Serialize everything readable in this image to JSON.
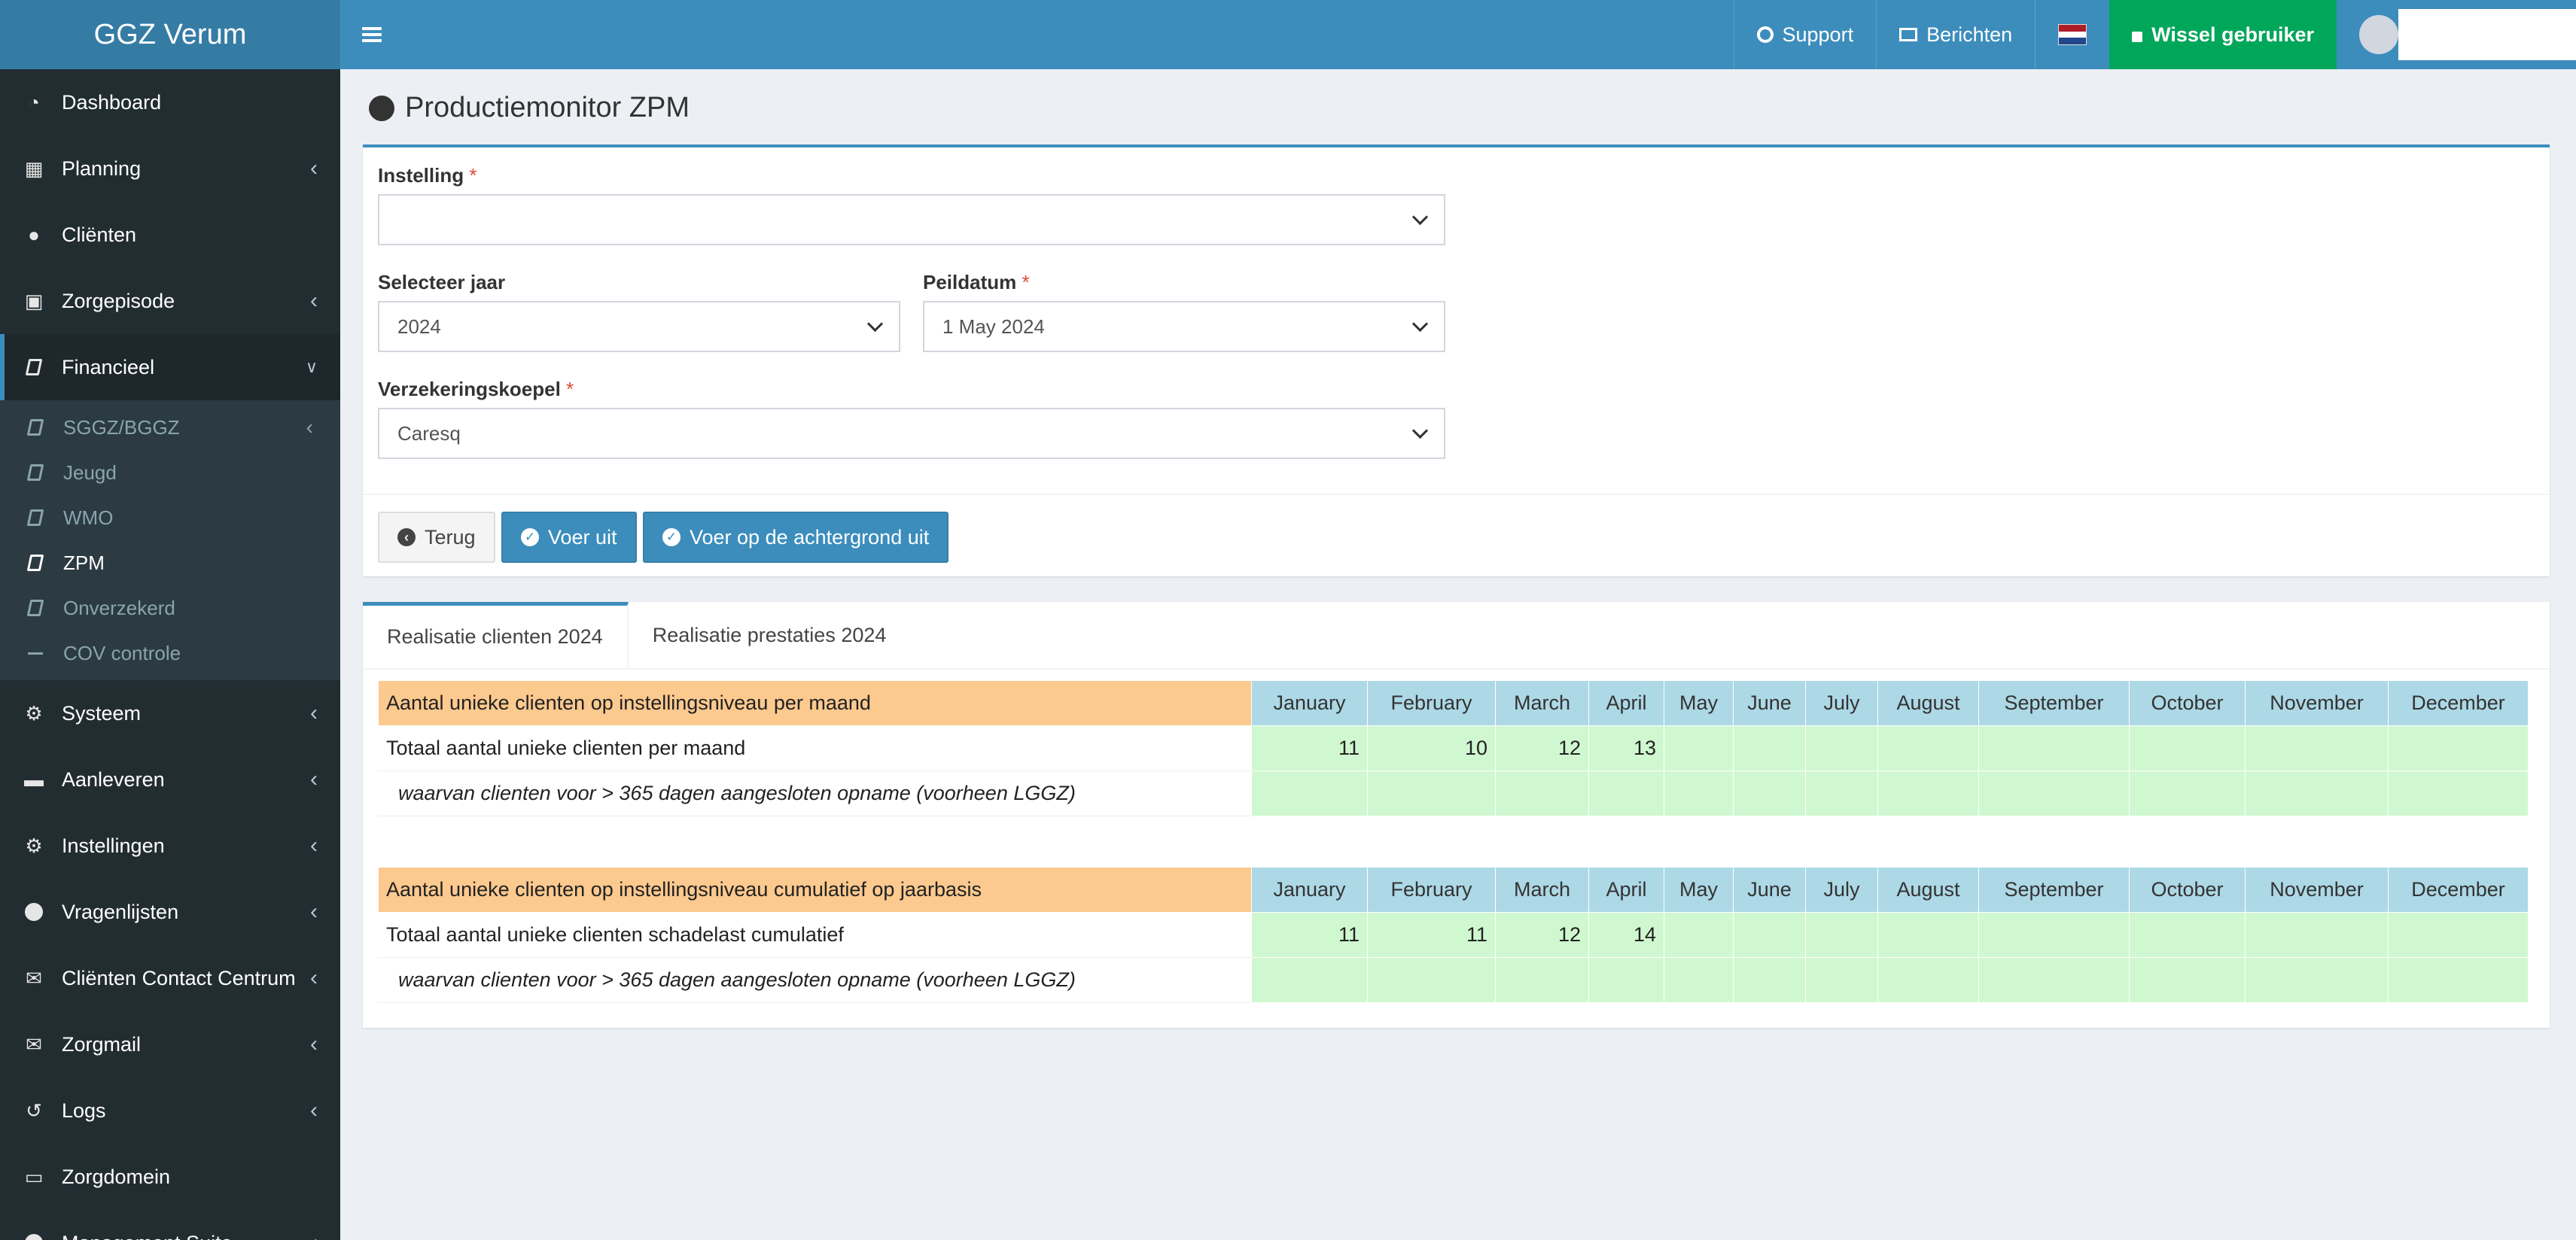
{
  "app": {
    "title": "GGZ Verum"
  },
  "topbar": {
    "support_label": "Support",
    "messages_label": "Berichten",
    "switch_user_label": "Wissel gebruiker",
    "flag_colors": [
      "#ae1c28",
      "#ffffff",
      "#21468b"
    ]
  },
  "sidebar": {
    "items": [
      {
        "label": "Dashboard",
        "icon": "dashboard-icon",
        "expandable": false
      },
      {
        "label": "Planning",
        "icon": "calendar-icon",
        "expandable": true
      },
      {
        "label": "Cliënten",
        "icon": "user-icon",
        "expandable": false
      },
      {
        "label": "Zorgepisode",
        "icon": "medkit-icon",
        "expandable": true
      },
      {
        "label": "Financieel",
        "icon": "book-icon",
        "expanded": true
      },
      {
        "label": "Systeem",
        "icon": "cogs-icon",
        "expandable": true
      },
      {
        "label": "Aanleveren",
        "icon": "truck-icon",
        "expandable": true
      },
      {
        "label": "Instellingen",
        "icon": "gear-icon",
        "expandable": true
      },
      {
        "label": "Vragenlijsten",
        "icon": "globe-icon",
        "expandable": true
      },
      {
        "label": "Cliënten Contact Centrum",
        "icon": "envelope-icon",
        "expandable": true
      },
      {
        "label": "Zorgmail",
        "icon": "envelope-icon",
        "expandable": true
      },
      {
        "label": "Logs",
        "icon": "history-icon",
        "expandable": true
      },
      {
        "label": "Zorgdomein",
        "icon": "inbox-icon",
        "expandable": false
      },
      {
        "label": "Management Suite",
        "icon": "globe-icon",
        "expandable": true
      }
    ],
    "financieel_sub": [
      {
        "label": "SGGZ/BGGZ",
        "expandable": true
      },
      {
        "label": "Jeugd"
      },
      {
        "label": "WMO"
      },
      {
        "label": "ZPM",
        "current": true
      },
      {
        "label": "Onverzekerd"
      },
      {
        "label": "COV controle"
      }
    ]
  },
  "page": {
    "title": "Productiemonitor ZPM"
  },
  "form": {
    "instelling_label": "Instelling",
    "instelling_value": "",
    "jaar_label": "Selecteer jaar",
    "jaar_value": "2024",
    "peildatum_label": "Peildatum",
    "peildatum_value": "1 May 2024",
    "koepel_label": "Verzekeringskoepel",
    "koepel_value": "Caresq",
    "required_mark": "*",
    "back_label": "Terug",
    "run_label": "Voer uit",
    "run_bg_label": "Voer op de achtergrond uit"
  },
  "tabs": [
    "Realisatie clienten 2024",
    "Realisatie prestaties 2024"
  ],
  "months": [
    "January",
    "February",
    "March",
    "April",
    "May",
    "June",
    "July",
    "August",
    "September",
    "October",
    "November",
    "December"
  ],
  "table1": {
    "header": "Aantal unieke clienten op instellingsniveau per maand",
    "row1_label": "Totaal aantal unieke clienten per maand",
    "row1_values": [
      "11",
      "10",
      "12",
      "13",
      "",
      "",
      "",
      "",
      "",
      "",
      "",
      ""
    ],
    "row2_label": "waarvan clienten voor > 365 dagen aangesloten opname (voorheen LGGZ)",
    "row2_values": [
      "",
      "",
      "",
      "",
      "",
      "",
      "",
      "",
      "",
      "",
      "",
      ""
    ]
  },
  "table2": {
    "header": "Aantal unieke clienten op instellingsniveau cumulatief op jaarbasis",
    "row1_label": "Totaal aantal unieke clienten schadelast cumulatief",
    "row1_values": [
      "11",
      "11",
      "12",
      "14",
      "",
      "",
      "",
      "",
      "",
      "",
      "",
      ""
    ],
    "row2_label": "waarvan clienten voor > 365 dagen aangesloten opname (voorheen LGGZ)",
    "row2_values": [
      "",
      "",
      "",
      "",
      "",
      "",
      "",
      "",
      "",
      "",
      "",
      ""
    ]
  }
}
